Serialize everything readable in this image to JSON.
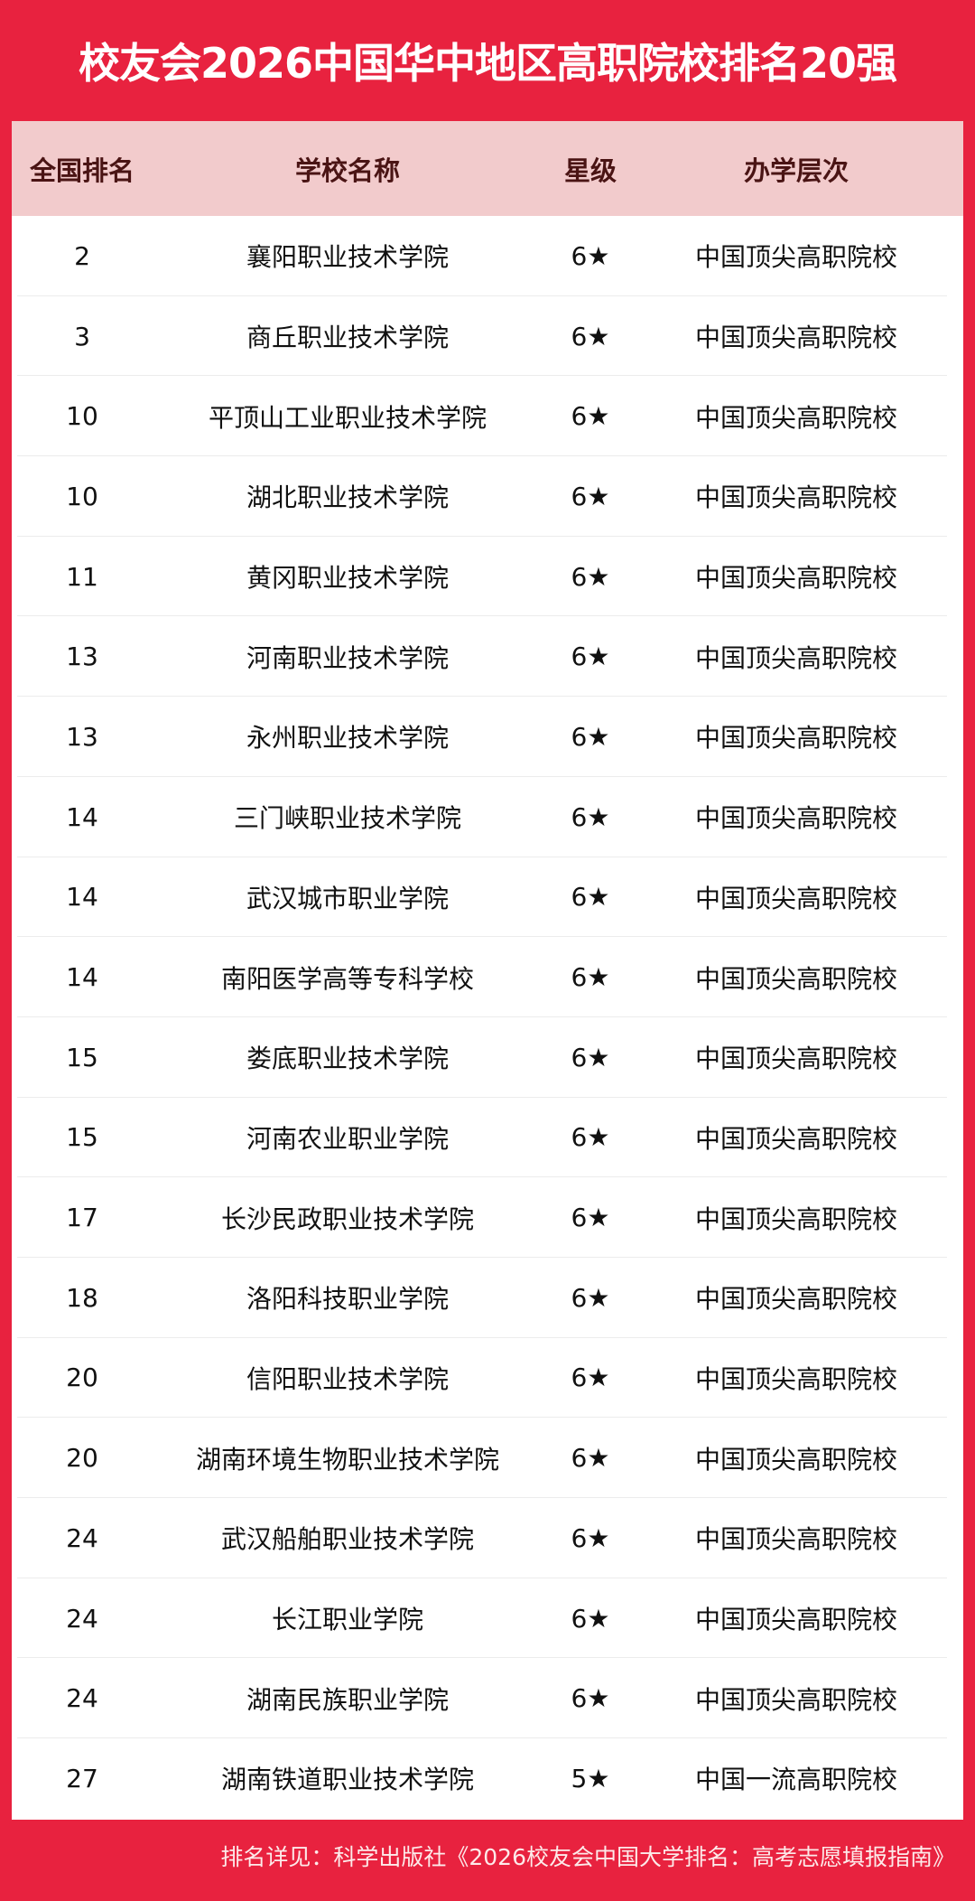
{
  "title": "校友会2026中国华中地区高职院校排名20强",
  "columns": [
    "全国排名",
    "学校名称",
    "星级",
    "办学层次"
  ],
  "rows": [
    [
      "2",
      "襄阳职业技术学院",
      "6★",
      "中国顶尖高职院校"
    ],
    [
      "3",
      "商丘职业技术学院",
      "6★",
      "中国顶尖高职院校"
    ],
    [
      "10",
      "平顶山工业职业技术学院",
      "6★",
      "中国顶尖高职院校"
    ],
    [
      "10",
      "湖北职业技术学院",
      "6★",
      "中国顶尖高职院校"
    ],
    [
      "11",
      "黄冈职业技术学院",
      "6★",
      "中国顶尖高职院校"
    ],
    [
      "13",
      "河南职业技术学院",
      "6★",
      "中国顶尖高职院校"
    ],
    [
      "13",
      "永州职业技术学院",
      "6★",
      "中国顶尖高职院校"
    ],
    [
      "14",
      "三门峡职业技术学院",
      "6★",
      "中国顶尖高职院校"
    ],
    [
      "14",
      "武汉城市职业学院",
      "6★",
      "中国顶尖高职院校"
    ],
    [
      "14",
      "南阳医学高等专科学校",
      "6★",
      "中国顶尖高职院校"
    ],
    [
      "15",
      "娄底职业技术学院",
      "6★",
      "中国顶尖高职院校"
    ],
    [
      "15",
      "河南农业职业学院",
      "6★",
      "中国顶尖高职院校"
    ],
    [
      "17",
      "长沙民政职业技术学院",
      "6★",
      "中国顶尖高职院校"
    ],
    [
      "18",
      "洛阳科技职业学院",
      "6★",
      "中国顶尖高职院校"
    ],
    [
      "20",
      "信阳职业技术学院",
      "6★",
      "中国顶尖高职院校"
    ],
    [
      "20",
      "湖南环境生物职业技术学院",
      "6★",
      "中国顶尖高职院校"
    ],
    [
      "24",
      "武汉船舶职业技术学院",
      "6★",
      "中国顶尖高职院校"
    ],
    [
      "24",
      "长江职业学院",
      "6★",
      "中国顶尖高职院校"
    ],
    [
      "24",
      "湖南民族职业学院",
      "6★",
      "中国顶尖高职院校"
    ],
    [
      "27",
      "湖南铁道职业技术学院",
      "5★",
      "中国一流高职院校"
    ]
  ],
  "footer": "排名详见：科学出版社《2026校友会中国大学排名：高考志愿填报指南》",
  "colors": {
    "brand_red": "#e8223f",
    "header_bg": "#f2cbcc",
    "header_text": "#4a1414"
  }
}
